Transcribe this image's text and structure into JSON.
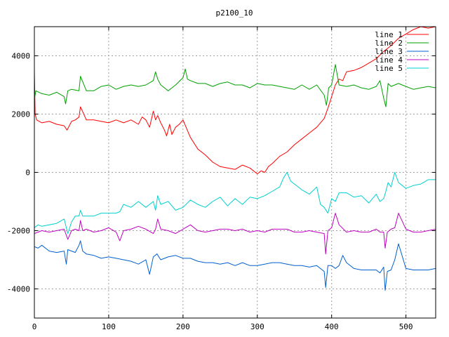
{
  "chart_data": {
    "type": "line",
    "title": "p2100_10",
    "xlabel": "",
    "ylabel": "",
    "xlim": [
      0,
      540
    ],
    "ylim": [
      -5000,
      5000
    ],
    "x_ticks": [
      0,
      100,
      200,
      300,
      400,
      500
    ],
    "y_ticks": [
      -4000,
      -2000,
      0,
      2000,
      4000
    ],
    "grid": true,
    "legend_position": "top-right",
    "series": [
      {
        "name": "line 1",
        "color": "#ff0000",
        "x": [
          0,
          1,
          3,
          10,
          20,
          30,
          40,
          44,
          50,
          55,
          60,
          62,
          70,
          80,
          90,
          100,
          110,
          120,
          130,
          140,
          145,
          150,
          155,
          160,
          163,
          166,
          170,
          175,
          178,
          182,
          185,
          190,
          195,
          200,
          205,
          210,
          215,
          220,
          230,
          240,
          250,
          260,
          270,
          280,
          290,
          300,
          305,
          310,
          315,
          320,
          330,
          340,
          350,
          360,
          370,
          380,
          390,
          395,
          400,
          405,
          410,
          415,
          420,
          430,
          440,
          450,
          460,
          470,
          480,
          490,
          500,
          510,
          520,
          530,
          540
        ],
        "y": [
          3500,
          2000,
          1800,
          1700,
          1750,
          1650,
          1600,
          1450,
          1750,
          1800,
          1900,
          2250,
          1800,
          1800,
          1750,
          1700,
          1800,
          1700,
          1800,
          1650,
          1900,
          1800,
          1550,
          2100,
          1800,
          1950,
          1700,
          1450,
          1250,
          1650,
          1300,
          1550,
          1650,
          1800,
          1500,
          1200,
          1000,
          800,
          600,
          350,
          200,
          150,
          100,
          250,
          150,
          -50,
          50,
          0,
          200,
          300,
          550,
          700,
          950,
          1150,
          1350,
          1550,
          1850,
          2200,
          2600,
          3000,
          3200,
          3150,
          3450,
          3500,
          3600,
          3750,
          3900,
          4150,
          4350,
          4600,
          4750,
          4900,
          5000,
          4950,
          5000
        ]
      },
      {
        "name": "line 2",
        "color": "#00a000",
        "x": [
          0,
          2,
          10,
          20,
          30,
          40,
          42,
          45,
          50,
          60,
          62,
          70,
          80,
          90,
          100,
          110,
          120,
          130,
          140,
          150,
          160,
          163,
          166,
          170,
          180,
          190,
          200,
          203,
          206,
          210,
          220,
          230,
          240,
          250,
          260,
          270,
          280,
          290,
          300,
          310,
          320,
          330,
          340,
          350,
          360,
          370,
          380,
          390,
          393,
          396,
          400,
          405,
          410,
          420,
          430,
          440,
          450,
          460,
          465,
          470,
          473,
          476,
          480,
          490,
          500,
          510,
          520,
          530,
          540
        ],
        "y": [
          2500,
          2800,
          2700,
          2650,
          2750,
          2600,
          2350,
          2800,
          2850,
          2800,
          3300,
          2800,
          2800,
          2950,
          3000,
          2850,
          2950,
          3000,
          2950,
          3000,
          3150,
          3450,
          3200,
          3000,
          2800,
          3000,
          3250,
          3550,
          3200,
          3150,
          3050,
          3050,
          2950,
          3050,
          3100,
          3000,
          3000,
          2900,
          3050,
          3000,
          3000,
          2950,
          2900,
          2850,
          3000,
          2850,
          3000,
          2650,
          2300,
          2900,
          3000,
          3700,
          3000,
          2950,
          3000,
          2900,
          2850,
          2950,
          3150,
          2550,
          2250,
          3050,
          2950,
          3050,
          2950,
          2850,
          2900,
          2950,
          2900
        ]
      },
      {
        "name": "line 3",
        "color": "#0060d0",
        "x": [
          0,
          5,
          10,
          20,
          30,
          40,
          43,
          45,
          50,
          55,
          60,
          62,
          65,
          70,
          80,
          90,
          100,
          110,
          120,
          130,
          140,
          150,
          155,
          160,
          165,
          170,
          180,
          190,
          200,
          210,
          220,
          230,
          240,
          250,
          260,
          270,
          280,
          290,
          300,
          310,
          320,
          330,
          340,
          350,
          360,
          370,
          380,
          390,
          392,
          395,
          400,
          405,
          410,
          415,
          420,
          430,
          440,
          450,
          460,
          465,
          470,
          472,
          475,
          480,
          485,
          490,
          500,
          510,
          520,
          530,
          540
        ],
        "y": [
          -2550,
          -2600,
          -2500,
          -2700,
          -2750,
          -2700,
          -3150,
          -2650,
          -2700,
          -2750,
          -2500,
          -2350,
          -2700,
          -2800,
          -2850,
          -2950,
          -2900,
          -2950,
          -3000,
          -3050,
          -3150,
          -3000,
          -3500,
          -2900,
          -2800,
          -3000,
          -2900,
          -2850,
          -2950,
          -2950,
          -3050,
          -3100,
          -3100,
          -3150,
          -3100,
          -3200,
          -3100,
          -3200,
          -3200,
          -3150,
          -3100,
          -3100,
          -3150,
          -3200,
          -3200,
          -3250,
          -3200,
          -3400,
          -3950,
          -3200,
          -3200,
          -3300,
          -3200,
          -2850,
          -3100,
          -3300,
          -3350,
          -3350,
          -3350,
          -3450,
          -3250,
          -4050,
          -3400,
          -3350,
          -3000,
          -2450,
          -3300,
          -3350,
          -3350,
          -3350,
          -3300
        ]
      },
      {
        "name": "line 4",
        "color": "#c000c0",
        "x": [
          0,
          5,
          10,
          20,
          30,
          40,
          45,
          50,
          55,
          60,
          62,
          65,
          70,
          80,
          90,
          100,
          110,
          115,
          120,
          130,
          140,
          150,
          160,
          163,
          166,
          170,
          180,
          190,
          200,
          210,
          220,
          230,
          240,
          250,
          260,
          270,
          280,
          290,
          300,
          310,
          320,
          330,
          340,
          350,
          360,
          370,
          380,
          390,
          392,
          395,
          400,
          405,
          410,
          420,
          430,
          440,
          450,
          460,
          465,
          470,
          472,
          475,
          480,
          485,
          490,
          500,
          510,
          520,
          530,
          540
        ],
        "y": [
          -2100,
          -2050,
          -2000,
          -2050,
          -2000,
          -1950,
          -2300,
          -2000,
          -1950,
          -2000,
          -1650,
          -2000,
          -1950,
          -2050,
          -2000,
          -1900,
          -2050,
          -2350,
          -2000,
          -1950,
          -1850,
          -1950,
          -2100,
          -1950,
          -1600,
          -1950,
          -2000,
          -2100,
          -1950,
          -1800,
          -2000,
          -2050,
          -2000,
          -1950,
          -1950,
          -2000,
          -1950,
          -2050,
          -2000,
          -2050,
          -1950,
          -1950,
          -1950,
          -2050,
          -2050,
          -2000,
          -2050,
          -2100,
          -2800,
          -2000,
          -1900,
          -1400,
          -1800,
          -2050,
          -2000,
          -2050,
          -2050,
          -1950,
          -2050,
          -2050,
          -2600,
          -2050,
          -1950,
          -1900,
          -1400,
          -1950,
          -2050,
          -2050,
          -2000,
          -1950
        ]
      },
      {
        "name": "line 5",
        "color": "#00d0d0",
        "x": [
          0,
          5,
          10,
          20,
          30,
          40,
          45,
          50,
          55,
          60,
          62,
          65,
          70,
          80,
          90,
          100,
          110,
          115,
          120,
          130,
          140,
          150,
          160,
          163,
          166,
          170,
          180,
          190,
          200,
          210,
          220,
          230,
          240,
          250,
          260,
          270,
          280,
          290,
          300,
          310,
          320,
          330,
          335,
          340,
          345,
          350,
          360,
          370,
          380,
          385,
          390,
          395,
          400,
          405,
          410,
          420,
          430,
          440,
          450,
          460,
          465,
          470,
          473,
          476,
          480,
          485,
          490,
          500,
          510,
          520,
          530,
          540
        ],
        "y": [
          -1900,
          -1800,
          -1850,
          -1800,
          -1750,
          -1600,
          -2100,
          -1700,
          -1500,
          -1500,
          -1300,
          -1500,
          -1500,
          -1500,
          -1400,
          -1400,
          -1400,
          -1350,
          -1100,
          -1200,
          -1000,
          -1200,
          -1000,
          -1300,
          -800,
          -1100,
          -1000,
          -1300,
          -1200,
          -950,
          -1100,
          -1200,
          -1000,
          -850,
          -1150,
          -900,
          -1100,
          -850,
          -900,
          -800,
          -650,
          -500,
          -200,
          0,
          -300,
          -400,
          -600,
          -750,
          -500,
          -1100,
          -1200,
          -1400,
          -900,
          -1000,
          -700,
          -700,
          -850,
          -800,
          -1050,
          -750,
          -1000,
          -900,
          -650,
          -350,
          -500,
          0,
          -350,
          -550,
          -450,
          -400,
          -250,
          -250
        ]
      }
    ]
  }
}
